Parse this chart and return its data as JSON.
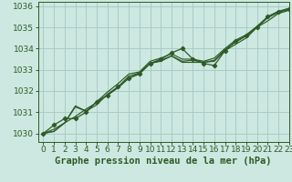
{
  "title": "Graphe pression niveau de la mer (hPa)",
  "background_color": "#cde8e0",
  "grid_color": "#a8ccc8",
  "line_color": "#2d5a27",
  "xlim": [
    -0.5,
    23
  ],
  "ylim": [
    1029.6,
    1036.2
  ],
  "yticks": [
    1030,
    1031,
    1032,
    1033,
    1034,
    1035,
    1036
  ],
  "xticks": [
    0,
    1,
    2,
    3,
    4,
    5,
    6,
    7,
    8,
    9,
    10,
    11,
    12,
    13,
    14,
    15,
    16,
    17,
    18,
    19,
    20,
    21,
    22,
    23
  ],
  "series": [
    [
      1030.0,
      1030.4,
      1030.7,
      1030.7,
      1031.0,
      1031.5,
      1031.8,
      1032.2,
      1032.6,
      1032.8,
      1033.3,
      1033.5,
      1033.8,
      1034.0,
      1033.5,
      1033.3,
      1033.2,
      1033.9,
      1034.35,
      1034.6,
      1035.0,
      1035.5,
      1035.75,
      1035.85
    ],
    [
      1030.0,
      1030.2,
      1030.5,
      1030.8,
      1031.15,
      1031.45,
      1031.8,
      1032.15,
      1032.6,
      1032.85,
      1033.3,
      1033.4,
      1033.65,
      1033.35,
      1033.35,
      1033.35,
      1033.4,
      1033.9,
      1034.2,
      1034.5,
      1035.0,
      1035.3,
      1035.65,
      1035.8
    ],
    [
      1030.0,
      1030.1,
      1030.5,
      1031.25,
      1031.05,
      1031.35,
      1031.85,
      1032.2,
      1032.7,
      1032.85,
      1033.3,
      1033.45,
      1033.65,
      1033.4,
      1033.45,
      1033.35,
      1033.45,
      1033.95,
      1034.3,
      1034.6,
      1035.0,
      1035.45,
      1035.7,
      1035.85
    ],
    [
      1030.0,
      1030.1,
      1030.5,
      1031.3,
      1031.05,
      1031.5,
      1031.95,
      1032.35,
      1032.8,
      1032.9,
      1033.4,
      1033.55,
      1033.75,
      1033.5,
      1033.5,
      1033.4,
      1033.55,
      1034.0,
      1034.4,
      1034.65,
      1035.05,
      1035.5,
      1035.75,
      1035.9
    ]
  ],
  "title_fontsize": 7.5,
  "tick_fontsize": 6.5
}
